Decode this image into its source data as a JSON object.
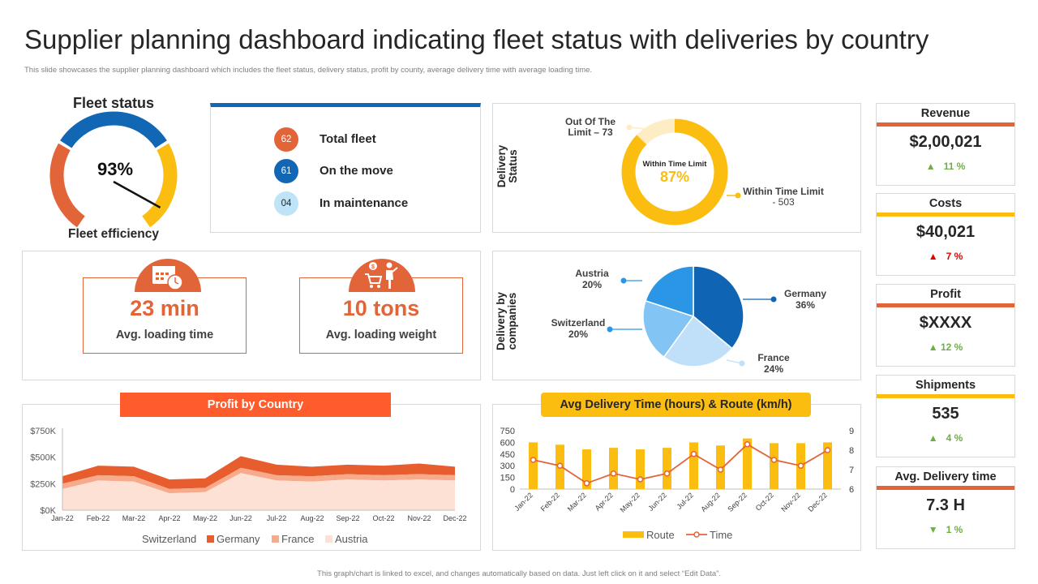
{
  "header": {
    "title": "Supplier planning dashboard indicating fleet status with deliveries by country",
    "subtitle": "This slide showcases the supplier planning dashboard which includes the fleet status, delivery status, profit by county, average delivery time with average loading time."
  },
  "footer": "This graph/chart is linked to excel, and changes automatically based on data. Just left click on it and select “Edit Data”.",
  "fleet_status": {
    "title": "Fleet status",
    "efficiency_value": "93%",
    "efficiency_fraction": 0.93,
    "efficiency_label": "Fleet efficiency"
  },
  "fleet_counts": [
    {
      "value": "62",
      "label": "Total fleet",
      "color": "#e2653a"
    },
    {
      "value": "61",
      "label": "On the move",
      "color": "#1267b4"
    },
    {
      "value": "04",
      "label": "In maintenance",
      "color": "#bfe3f7"
    }
  ],
  "loading": [
    {
      "value": "23 min",
      "label": "Avg. loading time",
      "icon": "calendar-clock-icon"
    },
    {
      "value": "10 tons",
      "label": "Avg. loading weight",
      "icon": "cart-worker-icon"
    }
  ],
  "metrics": [
    {
      "title": "Revenue",
      "value": "$2,00,021",
      "change": "11 %",
      "direction": "up",
      "bar_color": "#e2653a"
    },
    {
      "title": "Costs",
      "value": "$40,021",
      "change": "7 %",
      "direction": "up",
      "bar_color": "#fbbd10"
    },
    {
      "title": "Profit",
      "value": "$XXXX",
      "change": "12 %",
      "direction": "up",
      "bar_color": "#e2653a"
    },
    {
      "title": "Shipments",
      "value": "535",
      "change": "4 %",
      "direction": "up",
      "bar_color": "#fbbd10"
    },
    {
      "title": "Avg. Delivery time",
      "value": "7.3 H",
      "change": "1 %",
      "direction": "down",
      "bar_color": "#e2653a"
    }
  ],
  "colors": {
    "orange": "#e2653a",
    "blue": "#1267b4",
    "yellow": "#fbbd10",
    "green": "#70ad47",
    "red": "#e00000"
  },
  "chart_data": [
    {
      "type": "pie",
      "name": "Delivery Status",
      "axis_title": "Delivery Status",
      "center_label": "Within Time Limit",
      "center_value": "87%",
      "slices": [
        {
          "label": "Out Of The Limit – 73",
          "value": 73,
          "color": "#fdecc4"
        },
        {
          "label_main": "Within Time Limit",
          "label_suffix": " - 503",
          "value": 503,
          "color": "#fbbd10"
        }
      ]
    },
    {
      "type": "pie",
      "axis_title": "Delivery by companies",
      "slices": [
        {
          "label": "Germany",
          "pct": "36%",
          "value": 36,
          "color": "#0f65b3"
        },
        {
          "label": "France",
          "pct": "24%",
          "value": 24,
          "color": "#bfe0f8"
        },
        {
          "label": "Switzerland",
          "pct": "20%",
          "value": 20,
          "color": "#82c4f4"
        },
        {
          "label": "Austria",
          "pct": "20%",
          "value": 20,
          "color": "#2c96e6"
        }
      ]
    },
    {
      "type": "area",
      "title": "Profit by Country",
      "categories": [
        "Jan-22",
        "Feb-22",
        "Mar-22",
        "Apr-22",
        "May-22",
        "Jun-22",
        "Jul-22",
        "Aug-22",
        "Sep-22",
        "Oct-22",
        "Nov-22",
        "Dec-22"
      ],
      "ylim": [
        0,
        750000
      ],
      "yticks": [
        "$0K",
        "$250K",
        "$500K",
        "$750K"
      ],
      "series": [
        {
          "name": "Austria",
          "color": "#fde1d5",
          "values": [
            200000,
            280000,
            270000,
            160000,
            170000,
            350000,
            280000,
            270000,
            290000,
            280000,
            290000,
            280000
          ]
        },
        {
          "name": "France",
          "color": "#f8aa8c",
          "values": [
            50000,
            50000,
            50000,
            40000,
            40000,
            50000,
            50000,
            50000,
            50000,
            50000,
            50000,
            50000
          ]
        },
        {
          "name": "Germany",
          "color": "#e85d2d",
          "values": [
            70000,
            90000,
            90000,
            90000,
            90000,
            110000,
            100000,
            90000,
            90000,
            90000,
            100000,
            80000
          ]
        },
        {
          "name": "Switzerland",
          "color": "#ffffff",
          "values": [
            0,
            0,
            0,
            0,
            0,
            0,
            0,
            0,
            0,
            0,
            0,
            0
          ]
        }
      ],
      "legend": [
        "Switzerland",
        "Germany",
        "France",
        "Austria"
      ]
    },
    {
      "type": "bar",
      "title": "Avg Delivery Time (hours) & Route (km/h)",
      "categories": [
        "Jan-22",
        "Feb-22",
        "Mar-22",
        "Apr-22",
        "May-22",
        "Jun-22",
        "Jul-22",
        "Aug-22",
        "Sep-22",
        "Oct-22",
        "Nov-22",
        "Dec-22"
      ],
      "ylim_left": [
        0,
        750
      ],
      "yticks_left": [
        "0",
        "150",
        "300",
        "450",
        "600",
        "750"
      ],
      "ylim_right": [
        6,
        9
      ],
      "yticks_right": [
        "6",
        "7",
        "8",
        "9"
      ],
      "series": [
        {
          "name": "Route",
          "kind": "bar",
          "axis": "left",
          "color": "#fbbd10",
          "values": [
            600,
            570,
            510,
            530,
            510,
            530,
            600,
            560,
            650,
            590,
            590,
            600
          ]
        },
        {
          "name": "Time",
          "kind": "line",
          "axis": "right",
          "color": "#e2653a",
          "values": [
            7.5,
            7.2,
            6.3,
            6.8,
            6.5,
            6.8,
            7.8,
            7.0,
            8.3,
            7.5,
            7.2,
            8.0
          ]
        }
      ]
    }
  ]
}
